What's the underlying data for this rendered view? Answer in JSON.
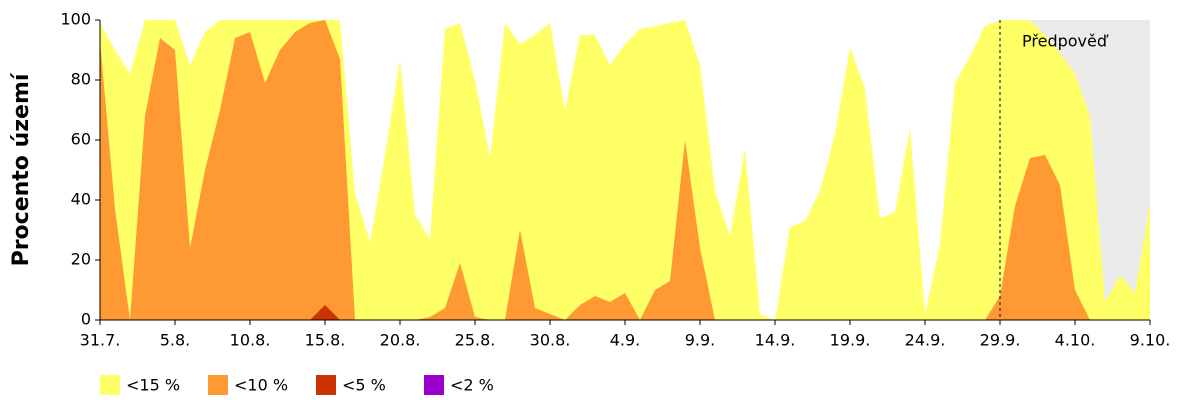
{
  "chart_data": {
    "type": "area",
    "y_label": "Procento území",
    "annotation": "Předpověď",
    "categories": [
      "31.7.",
      null,
      null,
      null,
      null,
      "5.8.",
      null,
      null,
      null,
      null,
      "10.8.",
      null,
      null,
      null,
      null,
      "15.8.",
      null,
      null,
      null,
      null,
      "20.8.",
      null,
      null,
      null,
      null,
      "25.8.",
      null,
      null,
      null,
      null,
      "30.8.",
      null,
      null,
      null,
      null,
      "4.9.",
      null,
      null,
      null,
      null,
      "9.9.",
      null,
      null,
      null,
      null,
      "14.9.",
      null,
      null,
      null,
      null,
      "19.9.",
      null,
      null,
      null,
      null,
      "24.9.",
      null,
      null,
      null,
      null,
      "29.9.",
      null,
      null,
      null,
      null,
      "4.10.",
      null,
      null,
      null,
      null,
      "9.10."
    ],
    "series": [
      {
        "name": "<15 %",
        "color": "#ffff66",
        "values": [
          99,
          90,
          82,
          100,
          100,
          100,
          85,
          96,
          100,
          100,
          100,
          100,
          100,
          100,
          100,
          100,
          100,
          42,
          26,
          55,
          87,
          35,
          27,
          97,
          99,
          80,
          54,
          99,
          92,
          95,
          99,
          70,
          95,
          95,
          85,
          92,
          97,
          98,
          99,
          100,
          85,
          43,
          28,
          57,
          2,
          0,
          31,
          33,
          43,
          62,
          91,
          77,
          34,
          36,
          64,
          2,
          25,
          79,
          88,
          98,
          100,
          100,
          100,
          95,
          89,
          82,
          68,
          6,
          15,
          9,
          39
        ]
      },
      {
        "name": "<10 %",
        "color": "#ff9933",
        "values": [
          93,
          37,
          0,
          68,
          94,
          90,
          24,
          50,
          70,
          94,
          96,
          79,
          90,
          96,
          99,
          100,
          87,
          0,
          0,
          0,
          0,
          0,
          1,
          4,
          19,
          1,
          0,
          0,
          30,
          4,
          2,
          0,
          5,
          8,
          6,
          9,
          0,
          10,
          13,
          60,
          24,
          0,
          0,
          0,
          0,
          0,
          0,
          0,
          0,
          0,
          0,
          0,
          0,
          0,
          0,
          0,
          0,
          0,
          0,
          0,
          8,
          38,
          54,
          55,
          45,
          10,
          0,
          0,
          0,
          0,
          0
        ]
      },
      {
        "name": "<5 %",
        "color": "#cc3300",
        "values": [
          0,
          0,
          0,
          0,
          0,
          0,
          0,
          0,
          0,
          0,
          0,
          0,
          0,
          0,
          0,
          5,
          0,
          0,
          0,
          0,
          0,
          0,
          0,
          0,
          0,
          0,
          0,
          0,
          0,
          0,
          0,
          0,
          0,
          0,
          0,
          0,
          0,
          0,
          0,
          0,
          0,
          0,
          0,
          0,
          0,
          0,
          0,
          0,
          0,
          0,
          0,
          0,
          0,
          0,
          0,
          0,
          0,
          0,
          0,
          0,
          0,
          0,
          0,
          0,
          0,
          0,
          0,
          0,
          0,
          0,
          0
        ]
      },
      {
        "name": "<2 %",
        "color": "#9900cc",
        "values": [
          0,
          0,
          0,
          0,
          0,
          0,
          0,
          0,
          0,
          0,
          0,
          0,
          0,
          0,
          0,
          0,
          0,
          0,
          0,
          0,
          0,
          0,
          0,
          0,
          0,
          0,
          0,
          0,
          0,
          0,
          0,
          0,
          0,
          0,
          0,
          0,
          0,
          0,
          0,
          0,
          0,
          0,
          0,
          0,
          0,
          0,
          0,
          0,
          0,
          0,
          0,
          0,
          0,
          0,
          0,
          0,
          0,
          0,
          0,
          0,
          0,
          0,
          0,
          0,
          0,
          0,
          0,
          0,
          0,
          0,
          0
        ]
      }
    ],
    "ylim": [
      0,
      100
    ],
    "yticks": [
      0,
      20,
      40,
      60,
      80,
      100
    ]
  }
}
